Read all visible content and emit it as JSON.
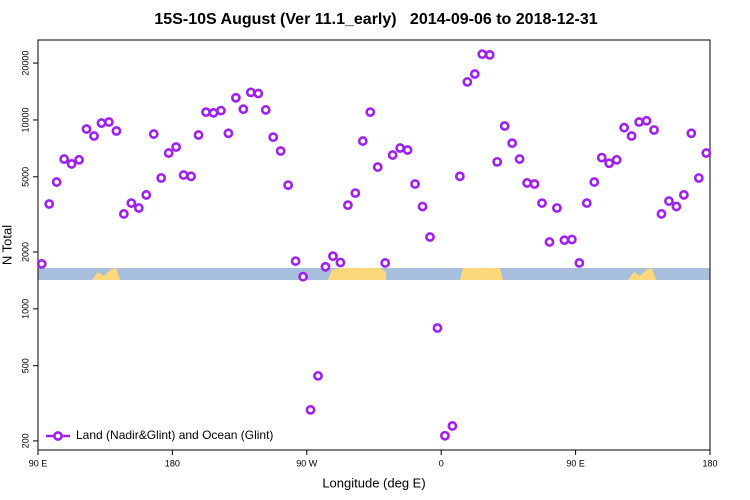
{
  "chart_data": {
    "type": "scatter",
    "title": "15S-10S August (Ver 11.1_early)   2014-09-06 to 2018-12-31",
    "x_label": "Longitude (deg E)",
    "y_label": "N Total",
    "log_y": true,
    "xlim": [
      90,
      540
    ],
    "ylim": [
      179,
      26500
    ],
    "xticks": [
      {
        "value": 90,
        "label": "90 E"
      },
      180,
      {
        "value": 270,
        "label": "90 W"
      },
      {
        "value": 360,
        "label": "0"
      },
      {
        "value": 450,
        "label": "90 E"
      },
      {
        "value": 540,
        "label": "180"
      }
    ],
    "yticks": [
      200,
      500,
      1000,
      2000,
      5000,
      10000,
      20000
    ],
    "legend": "bottom-left",
    "series": [
      {
        "name": "Land (Nadir&Glint) and Ocean (Glint)",
        "color": "#a020f0",
        "x": [
          92.5,
          97.5,
          102.5,
          107.5,
          112.5,
          117.5,
          122.5,
          127.5,
          132.5,
          137.5,
          142.5,
          147.5,
          152.5,
          157.5,
          162.5,
          167.5,
          172.5,
          177.5,
          182.5,
          187.5,
          192.5,
          197.5,
          202.5,
          207.5,
          212.5,
          217.5,
          222.5,
          227.5,
          232.5,
          237.5,
          242.5,
          247.5,
          252.5,
          257.5,
          262.5,
          267.5,
          272.5,
          277.5,
          282.5,
          287.5,
          292.5,
          297.5,
          302.5,
          307.5,
          312.5,
          317.5,
          322.5,
          327.5,
          332.5,
          337.5,
          342.5,
          347.5,
          352.5,
          357.5,
          362.5,
          367.5,
          372.5,
          377.5,
          382.5,
          387.5,
          392.5,
          397.5,
          402.5,
          407.5,
          412.5,
          417.5,
          422.5,
          427.5,
          432.5,
          437.5,
          442.5,
          447.5,
          452.5,
          457.5,
          462.5,
          467.5,
          472.5,
          477.5,
          482.5,
          487.5,
          492.5,
          497.5,
          502.5,
          507.5,
          512.5,
          517.5,
          522.5,
          527.5,
          532.5,
          537.5
        ],
        "values": [
          1730,
          3590,
          4690,
          6210,
          5850,
          6150,
          8950,
          8220,
          9630,
          9750,
          8740,
          3180,
          3630,
          3420,
          4010,
          8420,
          4930,
          6680,
          7190,
          5110,
          5030,
          8320,
          11000,
          10900,
          11200,
          8500,
          13100,
          11400,
          14000,
          13800,
          11300,
          8110,
          6850,
          4520,
          1790,
          1480,
          292,
          442,
          1670,
          1900,
          1760,
          3540,
          4100,
          7730,
          11000,
          5630,
          1750,
          6520,
          7100,
          6930,
          4580,
          3480,
          2400,
          792,
          213,
          240,
          5030,
          15900,
          17500,
          22300,
          22100,
          6000,
          9290,
          7540,
          6210,
          4640,
          4580,
          3630,
          2260,
          3420,
          2310,
          2330,
          1750,
          3630,
          4690,
          6320,
          5900,
          6150,
          9100,
          8220,
          9750,
          9900,
          8850,
          3180,
          3720,
          3480,
          4010,
          8500,
          4930,
          6680
        ]
      }
    ]
  }
}
